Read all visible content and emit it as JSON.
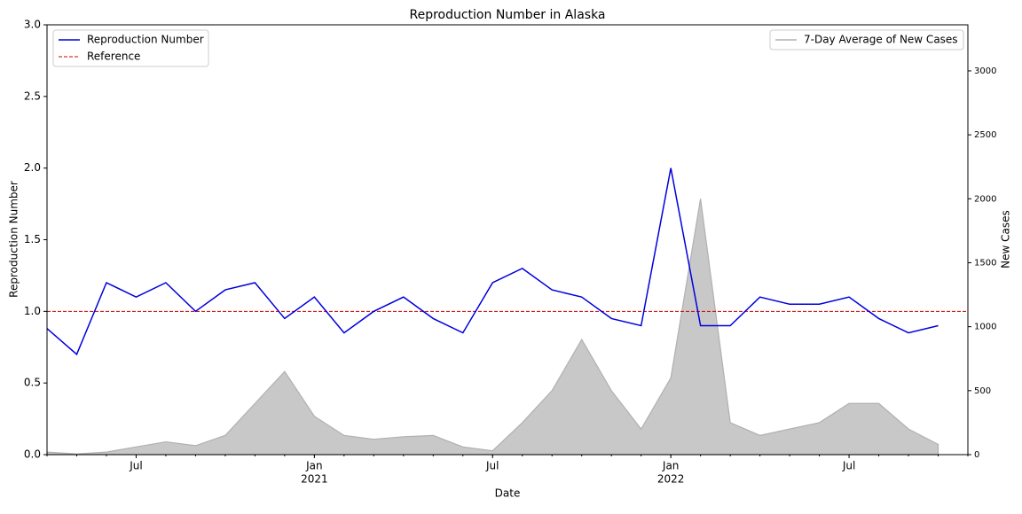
{
  "chart_data": {
    "type": "line",
    "title": "Reproduction Number in Alaska",
    "xlabel": "Date",
    "ylabel": "Reproduction Number",
    "y2label": "New Cases",
    "x": [
      "2020-04",
      "2020-05",
      "2020-06",
      "2020-07",
      "2020-08",
      "2020-09",
      "2020-10",
      "2020-11",
      "2020-12",
      "2021-01",
      "2021-02",
      "2021-03",
      "2021-04",
      "2021-05",
      "2021-06",
      "2021-07",
      "2021-08",
      "2021-09",
      "2021-10",
      "2021-11",
      "2021-12",
      "2022-01",
      "2022-02",
      "2022-03",
      "2022-04",
      "2022-05",
      "2022-06",
      "2022-07",
      "2022-08",
      "2022-09",
      "2022-10"
    ],
    "xlim": [
      "2020-04",
      "2022-11"
    ],
    "xticks": [
      {
        "value": "2020-07",
        "label": "Jul"
      },
      {
        "value": "2021-01",
        "label": "Jan",
        "year": "2021"
      },
      {
        "value": "2021-07",
        "label": "Jul"
      },
      {
        "value": "2022-01",
        "label": "Jan",
        "year": "2022"
      },
      {
        "value": "2022-07",
        "label": "Jul"
      }
    ],
    "ylim": [
      0,
      3
    ],
    "yticks": [
      {
        "value": 0,
        "label": "0.0"
      },
      {
        "value": 0.5,
        "label": "0.5"
      },
      {
        "value": 1,
        "label": "1.0"
      },
      {
        "value": 1.5,
        "label": "1.5"
      },
      {
        "value": 2,
        "label": "2.0"
      },
      {
        "value": 2.5,
        "label": "2.5"
      },
      {
        "value": 3,
        "label": "3.0"
      }
    ],
    "y2lim": [
      0,
      3360
    ],
    "y2ticks": [
      0,
      500,
      1000,
      1500,
      2000,
      2500,
      3000
    ],
    "series": [
      {
        "name": "Reproduction Number",
        "color": "#0000dd",
        "values": [
          0.88,
          0.7,
          1.2,
          1.1,
          1.2,
          1.0,
          1.15,
          1.2,
          0.95,
          1.1,
          0.85,
          1.0,
          1.1,
          0.95,
          0.85,
          1.2,
          1.3,
          1.15,
          1.1,
          0.95,
          0.9,
          2.0,
          0.9,
          0.9,
          1.1,
          1.05,
          1.05,
          1.1,
          0.95,
          0.85,
          0.9
        ]
      },
      {
        "name": "7-Day Average of New Cases",
        "color": "#b0b0b0",
        "axis": "y2",
        "values": [
          20,
          5,
          20,
          60,
          100,
          70,
          150,
          400,
          650,
          300,
          150,
          120,
          140,
          150,
          60,
          30,
          250,
          500,
          900,
          500,
          200,
          600,
          2000,
          250,
          150,
          200,
          250,
          400,
          400,
          200,
          80
        ]
      }
    ],
    "reference": {
      "name": "Reference",
      "value": 1,
      "color": "#cc0000"
    }
  }
}
